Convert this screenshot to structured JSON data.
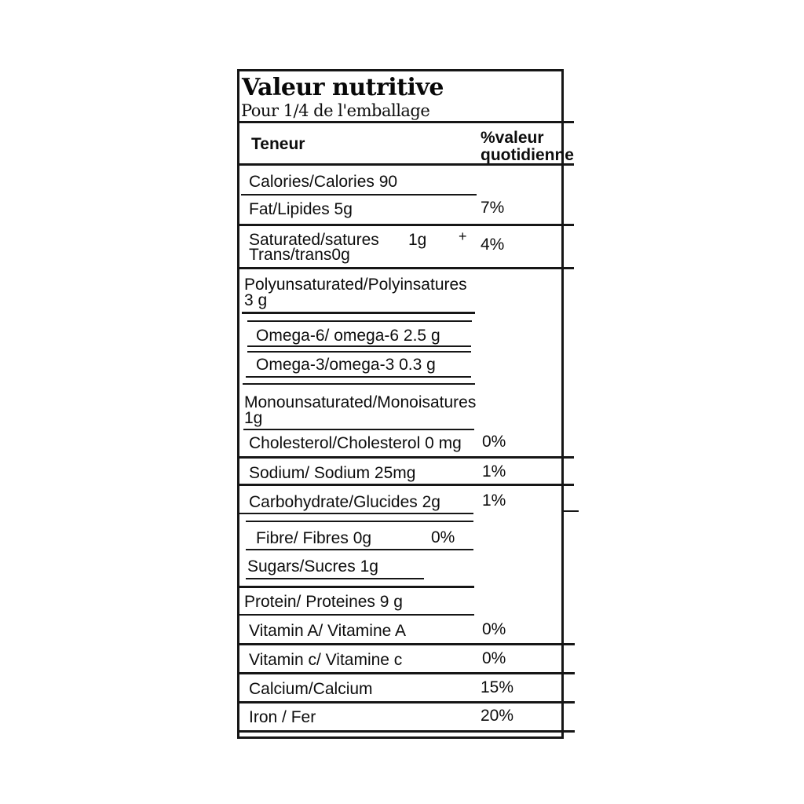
{
  "label": {
    "title": "Valeur nutritive",
    "serving": "Pour 1/4 de l'emballage",
    "columns": {
      "amount": "Teneur",
      "daily_value_line1": "%valeur",
      "daily_value_line2": "quotidienne"
    },
    "nutrients": [
      {
        "name": "Calories/Calories 90"
      },
      {
        "name": "Fat/Lipides 5g",
        "dv": "7%"
      },
      {
        "name": "Saturated/satures",
        "amount": "1g",
        "plus": "+",
        "name2": "Trans/trans0g",
        "dv": "4%"
      },
      {
        "name": "Polyunsaturated/Polyinsatures",
        "name2": "3 g"
      },
      {
        "name": "Omega-6/ omega-6 2.5 g"
      },
      {
        "name": "Omega-3/omega-3 0.3 g"
      },
      {
        "name": "Monounsaturated/Monoisatures",
        "name2": "1g"
      },
      {
        "name": "Cholesterol/Cholesterol 0 mg",
        "dv": "0%"
      },
      {
        "name": "Sodium/ Sodium 25mg",
        "dv": "1%"
      },
      {
        "name": "Carbohydrate/Glucides 2g",
        "dv": "1%"
      },
      {
        "name": "Fibre/ Fibres 0g",
        "dv": "0%"
      },
      {
        "name": "Sugars/Sucres 1g"
      },
      {
        "name": "Protein/ Proteines 9 g"
      },
      {
        "name": "Vitamin A/ Vitamine A",
        "dv": "0%"
      },
      {
        "name": "Vitamin c/ Vitamine c",
        "dv": "0%"
      },
      {
        "name": "Calcium/Calcium",
        "dv": "15%"
      },
      {
        "name": "Iron / Fer",
        "dv": "20%"
      }
    ],
    "colors": {
      "text": "#0d0d0d",
      "line": "#161616",
      "background": "#ffffff"
    }
  }
}
